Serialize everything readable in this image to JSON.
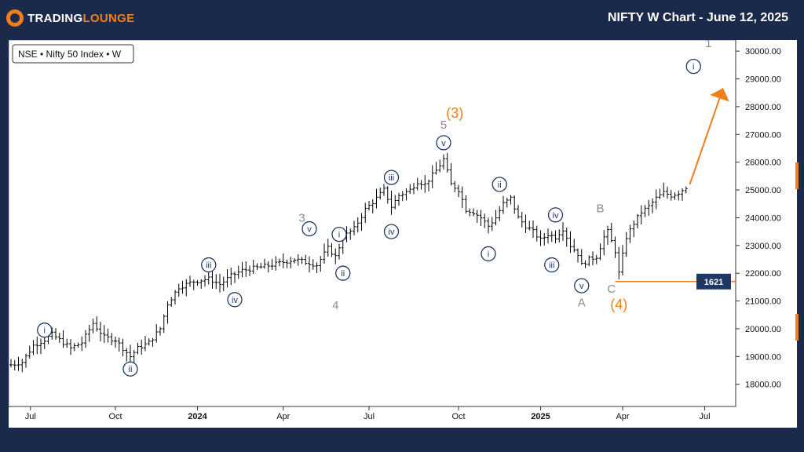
{
  "header": {
    "logo_text_a": "TRADING",
    "logo_text_b": "LOUNGE",
    "title": "NIFTY W Chart - June 12, 2025"
  },
  "colors": {
    "background": "#1b2a4a",
    "accent": "#f07f1a",
    "wave_navy": "#1f3764",
    "wave_gray": "#8c8c8c",
    "price_tag": "#1f3764"
  },
  "chart_data": {
    "type": "ohlc",
    "symbol_label": "NSE • Nifty 50 Index • W",
    "ylim": [
      17200,
      30400
    ],
    "y_ticks": [
      18000,
      19000,
      20000,
      21000,
      22000,
      23000,
      24000,
      25000,
      26000,
      27000,
      28000,
      29000,
      30000
    ],
    "y_tick_labels": [
      "18000.00",
      "19000.00",
      "20000.00",
      "21000.00",
      "22000.00",
      "23000.00",
      "24000.00",
      "25000.00",
      "26000.00",
      "27000.00",
      "28000.00",
      "29000.00",
      "30000.00"
    ],
    "x_ticks": [
      {
        "label": "Jul",
        "bold": false
      },
      {
        "label": "Oct",
        "bold": false
      },
      {
        "label": "2024",
        "bold": true
      },
      {
        "label": "Apr",
        "bold": false
      },
      {
        "label": "Jul",
        "bold": false
      },
      {
        "label": "Oct",
        "bold": false
      },
      {
        "label": "2025",
        "bold": true
      },
      {
        "label": "Apr",
        "bold": false
      },
      {
        "label": "Jul",
        "bold": false
      }
    ],
    "close_path": [
      [
        0,
        18700
      ],
      [
        3,
        18800
      ],
      [
        6,
        19400
      ],
      [
        9,
        19600
      ],
      [
        11,
        19800
      ],
      [
        13,
        19600
      ],
      [
        16,
        19300
      ],
      [
        19,
        19500
      ],
      [
        22,
        20200
      ],
      [
        25,
        19700
      ],
      [
        28,
        19600
      ],
      [
        30,
        19300
      ],
      [
        32,
        19000
      ],
      [
        34,
        19300
      ],
      [
        37,
        19500
      ],
      [
        40,
        20000
      ],
      [
        42,
        20900
      ],
      [
        45,
        21500
      ],
      [
        49,
        21700
      ],
      [
        53,
        21800
      ],
      [
        56,
        21600
      ],
      [
        59,
        21900
      ],
      [
        62,
        22100
      ],
      [
        66,
        22200
      ],
      [
        70,
        22300
      ],
      [
        73,
        22400
      ],
      [
        76,
        22500
      ],
      [
        79,
        22400
      ],
      [
        82,
        22300
      ],
      [
        85,
        22900
      ],
      [
        87,
        22600
      ],
      [
        89,
        23300
      ],
      [
        92,
        23600
      ],
      [
        95,
        24300
      ],
      [
        98,
        24700
      ],
      [
        100,
        25000
      ],
      [
        102,
        24400
      ],
      [
        104,
        24800
      ],
      [
        107,
        25000
      ],
      [
        109,
        25300
      ],
      [
        111,
        25200
      ],
      [
        114,
        25700
      ],
      [
        116,
        26100
      ],
      [
        118,
        25200
      ],
      [
        120,
        25000
      ],
      [
        122,
        24300
      ],
      [
        124,
        24200
      ],
      [
        126,
        24000
      ],
      [
        128,
        23700
      ],
      [
        130,
        24000
      ],
      [
        132,
        24500
      ],
      [
        134,
        24700
      ],
      [
        136,
        24000
      ],
      [
        138,
        23700
      ],
      [
        140,
        23500
      ],
      [
        142,
        23200
      ],
      [
        144,
        23400
      ],
      [
        146,
        23300
      ],
      [
        148,
        23600
      ],
      [
        150,
        23000
      ],
      [
        152,
        22700
      ],
      [
        153,
        22300
      ],
      [
        155,
        22500
      ],
      [
        157,
        22600
      ],
      [
        159,
        23300
      ],
      [
        160,
        23500
      ],
      [
        162,
        22800
      ],
      [
        163,
        22000
      ],
      [
        165,
        23300
      ],
      [
        167,
        23800
      ],
      [
        169,
        24200
      ],
      [
        171,
        24400
      ],
      [
        173,
        24700
      ],
      [
        175,
        24900
      ],
      [
        177,
        24800
      ],
      [
        179,
        24900
      ],
      [
        181,
        25100
      ]
    ],
    "projection": {
      "from": [
        182,
        25200
      ],
      "to": [
        190,
        28300
      ]
    },
    "support_level": {
      "value": 21700,
      "x_start": 162,
      "label": "1621"
    },
    "wave_labels": [
      {
        "text": "i",
        "x": 9,
        "y": 19950,
        "style": "circle-navy"
      },
      {
        "text": "ii",
        "x": 32,
        "y": 18550,
        "style": "circle-navy"
      },
      {
        "text": "iii",
        "x": 53,
        "y": 22300,
        "style": "circle-navy"
      },
      {
        "text": "iv",
        "x": 60,
        "y": 21050,
        "style": "circle-navy"
      },
      {
        "text": "v",
        "x": 80,
        "y": 23600,
        "style": "circle-navy"
      },
      {
        "text": "3",
        "x": 78,
        "y": 23850,
        "style": "plain-gray"
      },
      {
        "text": "i",
        "x": 88,
        "y": 23400,
        "style": "circle-navy"
      },
      {
        "text": "ii",
        "x": 89,
        "y": 22000,
        "style": "circle-navy"
      },
      {
        "text": "4",
        "x": 87,
        "y": 20700,
        "style": "plain-gray"
      },
      {
        "text": "iii",
        "x": 102,
        "y": 25450,
        "style": "circle-navy"
      },
      {
        "text": "iv",
        "x": 102,
        "y": 23500,
        "style": "circle-navy"
      },
      {
        "text": "v",
        "x": 116,
        "y": 26700,
        "style": "circle-navy"
      },
      {
        "text": "5",
        "x": 116,
        "y": 27200,
        "style": "plain-gray"
      },
      {
        "text": "(3)",
        "x": 119,
        "y": 27600,
        "style": "plain-orange"
      },
      {
        "text": "i",
        "x": 128,
        "y": 22700,
        "style": "circle-navy"
      },
      {
        "text": "ii",
        "x": 131,
        "y": 25200,
        "style": "circle-navy"
      },
      {
        "text": "iv",
        "x": 146,
        "y": 24100,
        "style": "circle-navy"
      },
      {
        "text": "iii",
        "x": 145,
        "y": 22300,
        "style": "circle-navy"
      },
      {
        "text": "v",
        "x": 153,
        "y": 21550,
        "style": "circle-navy"
      },
      {
        "text": "A",
        "x": 153,
        "y": 20800,
        "style": "plain-gray"
      },
      {
        "text": "B",
        "x": 158,
        "y": 24200,
        "style": "plain-gray"
      },
      {
        "text": "C",
        "x": 161,
        "y": 21300,
        "style": "plain-gray"
      },
      {
        "text": "(4)",
        "x": 163,
        "y": 20700,
        "style": "plain-orange"
      },
      {
        "text": "i",
        "x": 183,
        "y": 29450,
        "style": "circle-navy"
      },
      {
        "text": "1",
        "x": 187,
        "y": 30150,
        "style": "plain-gray"
      }
    ]
  }
}
